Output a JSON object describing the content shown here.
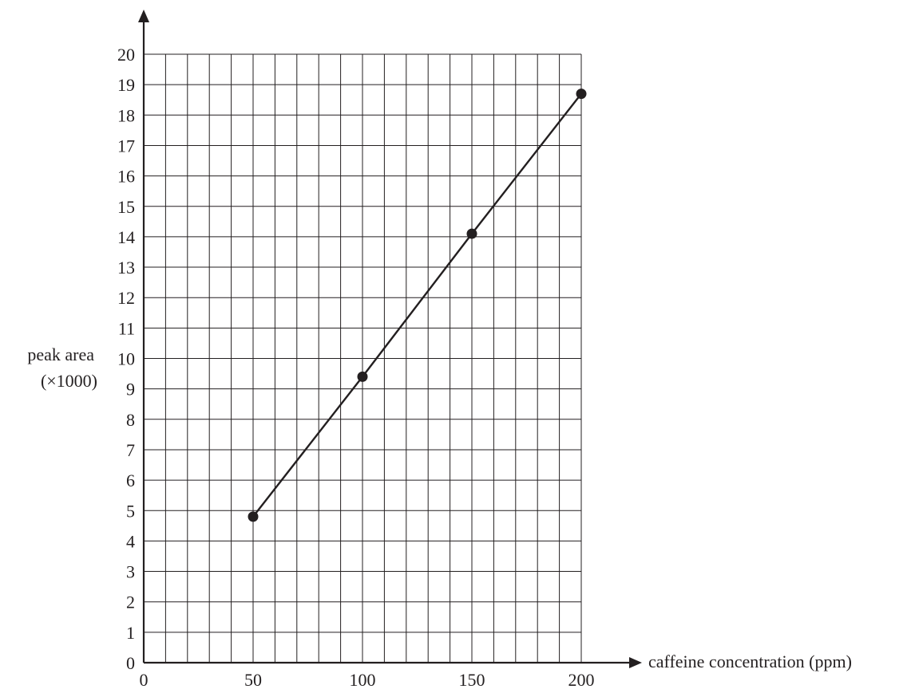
{
  "chart_data": {
    "type": "line",
    "x": [
      50,
      100,
      150,
      200
    ],
    "series": [
      {
        "values": [
          4.8,
          9.4,
          14.1,
          18.7
        ]
      }
    ],
    "xlabel": "caffeine concentration (ppm)",
    "ylabel_lines": [
      "peak area",
      "(×1000)"
    ],
    "xlim": [
      0,
      200
    ],
    "ylim": [
      0,
      20
    ],
    "x_ticks": [
      0,
      50,
      100,
      150,
      200
    ],
    "y_ticks": [
      0,
      1,
      2,
      3,
      4,
      5,
      6,
      7,
      8,
      9,
      10,
      11,
      12,
      13,
      14,
      15,
      16,
      17,
      18,
      19,
      20
    ],
    "x_minor_step": 10,
    "y_minor_step": 1,
    "grid": true,
    "markers": true,
    "colors": {
      "ink": "#231f20"
    }
  }
}
